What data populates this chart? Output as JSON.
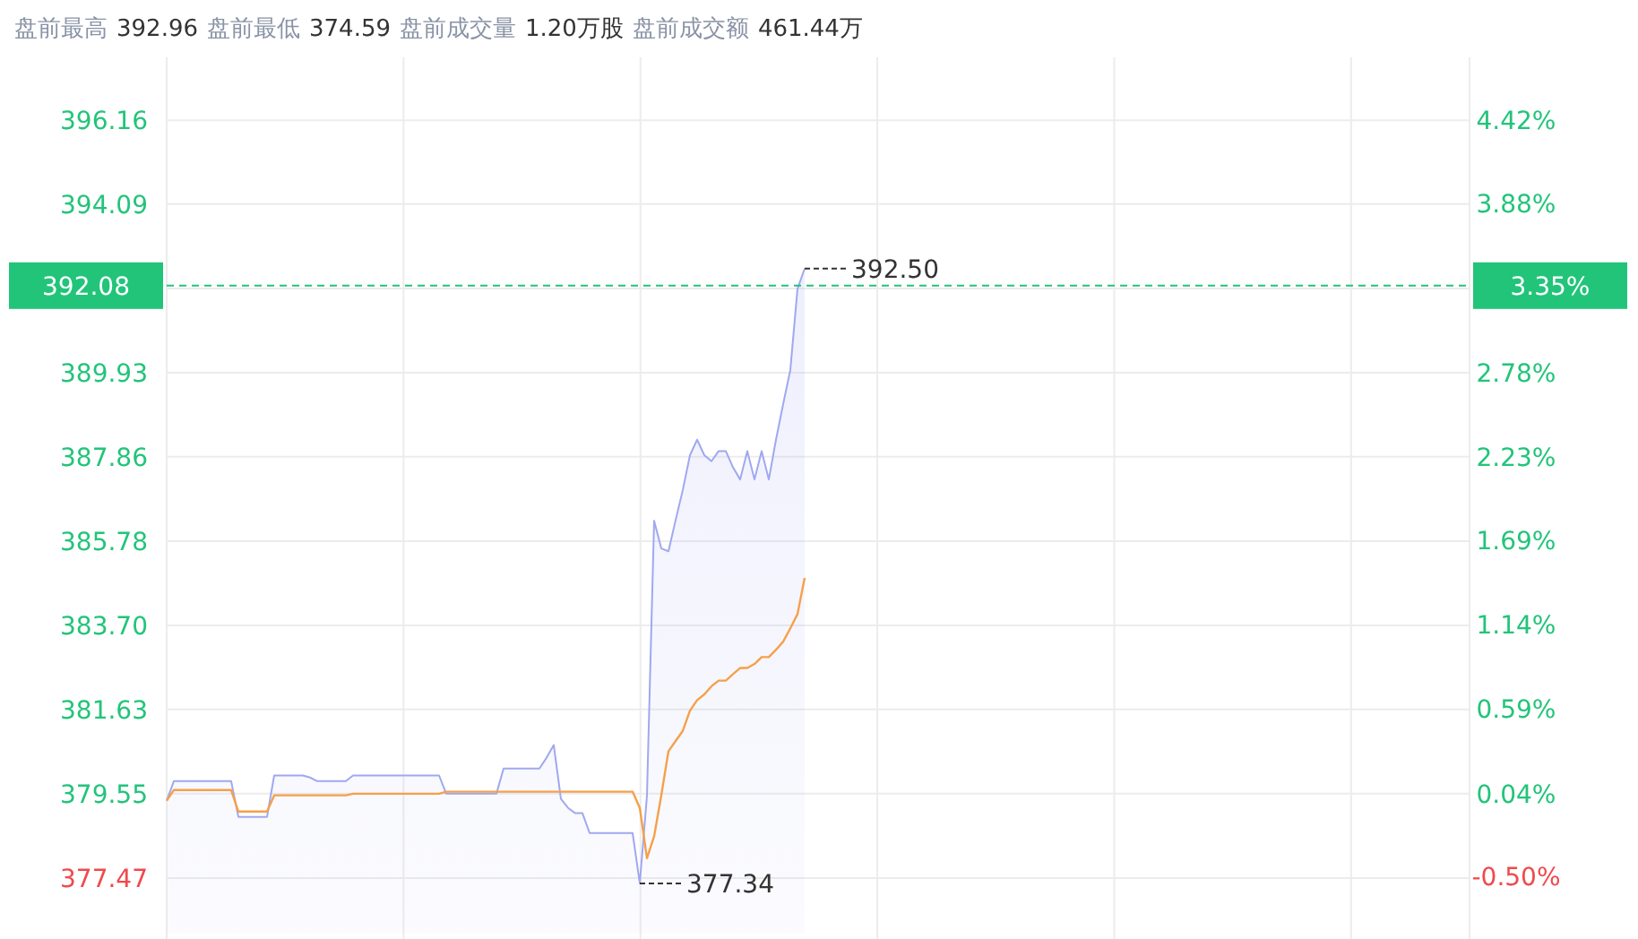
{
  "chart_data": {
    "type": "line",
    "annotations": [
      "盘前最高",
      "392.96",
      "盘前最低",
      "374.59",
      "盘前成交量",
      "1.20万股",
      "盘前成交额",
      "461.44万",
      "392.50",
      "377.34",
      "3.35%"
    ],
    "categories": [
      null,
      null,
      null,
      null,
      null,
      null,
      null,
      null,
      null,
      null,
      null,
      null,
      null,
      null,
      null,
      null,
      null,
      null,
      null,
      null,
      null,
      null,
      null,
      null,
      null,
      null,
      null,
      null,
      null,
      null,
      null,
      null,
      null,
      null,
      null,
      null,
      null,
      null,
      null,
      null,
      null,
      null,
      null,
      null,
      null,
      null,
      null,
      null,
      null,
      null,
      null,
      null,
      null,
      null,
      null,
      null,
      null,
      null,
      null,
      null,
      null,
      null,
      null,
      null,
      null,
      null,
      null,
      null,
      null,
      null,
      null,
      null,
      null,
      null,
      null,
      null,
      null,
      null,
      null,
      null,
      null,
      null,
      null,
      null,
      null,
      null,
      null,
      null,
      null,
      null,
      null,
      null,
      null,
      null,
      null,
      null,
      null,
      null,
      null,
      null,
      null,
      null,
      null,
      null,
      null,
      null,
      null,
      null,
      null,
      null,
      null,
      null,
      null,
      null,
      null,
      null,
      null,
      null,
      null,
      null,
      null,
      null,
      null,
      null,
      null,
      null,
      null,
      null,
      null,
      null,
      null,
      null,
      null,
      null,
      null,
      null,
      null,
      null,
      null,
      null,
      null,
      null,
      null,
      null,
      null,
      null,
      null,
      null,
      null,
      null,
      null,
      null,
      null,
      null,
      null,
      null,
      null,
      null,
      null,
      null,
      null,
      null,
      null,
      null,
      null,
      null,
      null,
      null,
      null,
      null,
      null,
      null,
      null,
      null,
      null,
      null,
      null,
      null,
      null,
      null,
      null,
      null
    ],
    "series": [
      {
        "type": "area",
        "color": "#a0a8f0",
        "values": [
          379.38,
          379.86,
          379.86,
          379.86,
          379.86,
          379.86,
          379.86,
          379.86,
          379.86,
          379.86,
          378.98,
          378.98,
          378.98,
          378.98,
          378.98,
          380.0,
          380.0,
          380.0,
          380.0,
          380.0,
          379.95,
          379.86,
          379.86,
          379.86,
          379.86,
          379.86,
          380.0,
          380.0,
          380.0,
          380.0,
          380.0,
          380.0,
          380.0,
          380.0,
          380.0,
          380.0,
          380.0,
          380.0,
          380.0,
          379.55,
          379.55,
          379.55,
          379.55,
          379.55,
          379.55,
          379.55,
          379.55,
          380.17,
          380.17,
          380.17,
          380.17,
          380.17,
          380.17,
          380.44,
          380.75,
          379.42,
          379.2,
          379.07,
          379.07,
          378.58,
          378.58,
          378.58,
          378.58,
          378.58,
          378.58,
          378.58,
          377.34,
          379.5,
          386.28,
          385.6,
          385.53,
          386.3,
          387.04,
          387.9,
          388.28,
          387.9,
          387.75,
          388.0,
          388.0,
          387.6,
          387.3,
          388.0,
          387.3,
          388.0,
          387.3,
          388.28,
          389.16,
          390.0,
          392.0,
          392.5,
          null,
          null,
          null,
          null,
          null,
          null,
          null,
          null,
          null,
          null,
          null,
          null,
          null,
          null,
          null,
          null,
          null,
          null,
          null,
          null,
          null,
          null,
          null,
          null,
          null,
          null,
          null,
          null,
          null,
          null,
          null,
          null,
          null,
          null,
          null,
          null,
          null,
          null,
          null,
          null,
          null,
          null,
          null,
          null,
          null,
          null,
          null,
          null,
          null,
          null,
          null,
          null,
          null,
          null,
          null,
          null,
          null,
          null,
          null,
          null,
          null,
          null,
          null,
          null,
          null,
          null,
          null,
          null,
          null,
          null,
          null,
          null,
          null,
          null,
          null,
          null,
          null,
          null,
          null,
          null,
          null,
          null,
          null,
          null,
          null,
          null,
          null,
          null,
          null,
          null,
          null,
          null
        ]
      },
      {
        "color": "#f5a04a",
        "values": [
          379.38,
          379.64,
          379.64,
          379.64,
          379.64,
          379.64,
          379.64,
          379.64,
          379.64,
          379.64,
          379.11,
          379.11,
          379.11,
          379.11,
          379.11,
          379.51,
          379.51,
          379.51,
          379.51,
          379.51,
          379.51,
          379.51,
          379.51,
          379.51,
          379.51,
          379.51,
          379.55,
          379.55,
          379.55,
          379.55,
          379.55,
          379.55,
          379.55,
          379.55,
          379.55,
          379.55,
          379.55,
          379.55,
          379.55,
          379.6,
          379.6,
          379.6,
          379.6,
          379.6,
          379.6,
          379.6,
          379.6,
          379.6,
          379.6,
          379.6,
          379.6,
          379.6,
          379.6,
          379.6,
          379.6,
          379.6,
          379.6,
          379.6,
          379.6,
          379.6,
          379.6,
          379.6,
          379.6,
          379.6,
          379.6,
          379.6,
          379.2,
          377.96,
          378.5,
          379.51,
          380.6,
          380.85,
          381.1,
          381.6,
          381.86,
          382.0,
          382.2,
          382.34,
          382.34,
          382.5,
          382.65,
          382.65,
          382.75,
          382.92,
          382.92,
          383.1,
          383.3,
          383.63,
          383.98,
          384.87,
          null,
          null,
          null,
          null,
          null,
          null,
          null,
          null,
          null,
          null,
          null,
          null,
          null,
          null,
          null,
          null,
          null,
          null,
          null,
          null,
          null,
          null,
          null,
          null,
          null,
          null,
          null,
          null,
          null,
          null,
          null,
          null,
          null,
          null,
          null,
          null,
          null,
          null,
          null,
          null,
          null,
          null,
          null,
          null,
          null,
          null,
          null,
          null,
          null,
          null,
          null,
          null,
          null,
          null,
          null,
          null,
          null,
          null,
          null,
          null,
          null,
          null,
          null,
          null,
          null,
          null,
          null,
          null,
          null,
          null,
          null,
          null,
          null,
          null,
          null,
          null,
          null,
          null,
          null,
          null,
          null,
          null,
          null,
          null,
          null,
          null,
          null,
          null,
          null,
          null,
          null,
          null
        ]
      }
    ],
    "ylim": [
      376.1,
      397.71
    ],
    "yticks": [
      396.16,
      394.09,
      {
        "value": 392.01,
        "label": null
      },
      389.93,
      387.86,
      385.78,
      {
        "value": 383.7,
        "label": "383.70"
      },
      381.63,
      379.55,
      377.47
    ],
    "y2lim": [
      -0.87,
      4.83
    ],
    "y2ticks": [
      {
        "value": 4.42,
        "label": "4.42%"
      },
      {
        "value": 3.88,
        "label": "3.88%"
      },
      {
        "value": 3.33,
        "label": null
      },
      {
        "value": 2.78,
        "label": "2.78%"
      },
      {
        "value": 2.23,
        "label": "2.23%"
      },
      {
        "value": 1.69,
        "label": "1.69%"
      },
      {
        "value": 1.14,
        "label": "1.14%"
      },
      {
        "value": 0.59,
        "label": "0.59%"
      },
      {
        "value": 0.04,
        "label": "0.04%"
      },
      {
        "value": -0.5,
        "label": "-0.50%"
      }
    ],
    "ref_lines": [
      {
        "axis": "y",
        "value": 392.08,
        "label": "392.08",
        "color": "#22c47a",
        "line_style": "dashed"
      }
    ],
    "grid": true,
    "marker": "none"
  }
}
